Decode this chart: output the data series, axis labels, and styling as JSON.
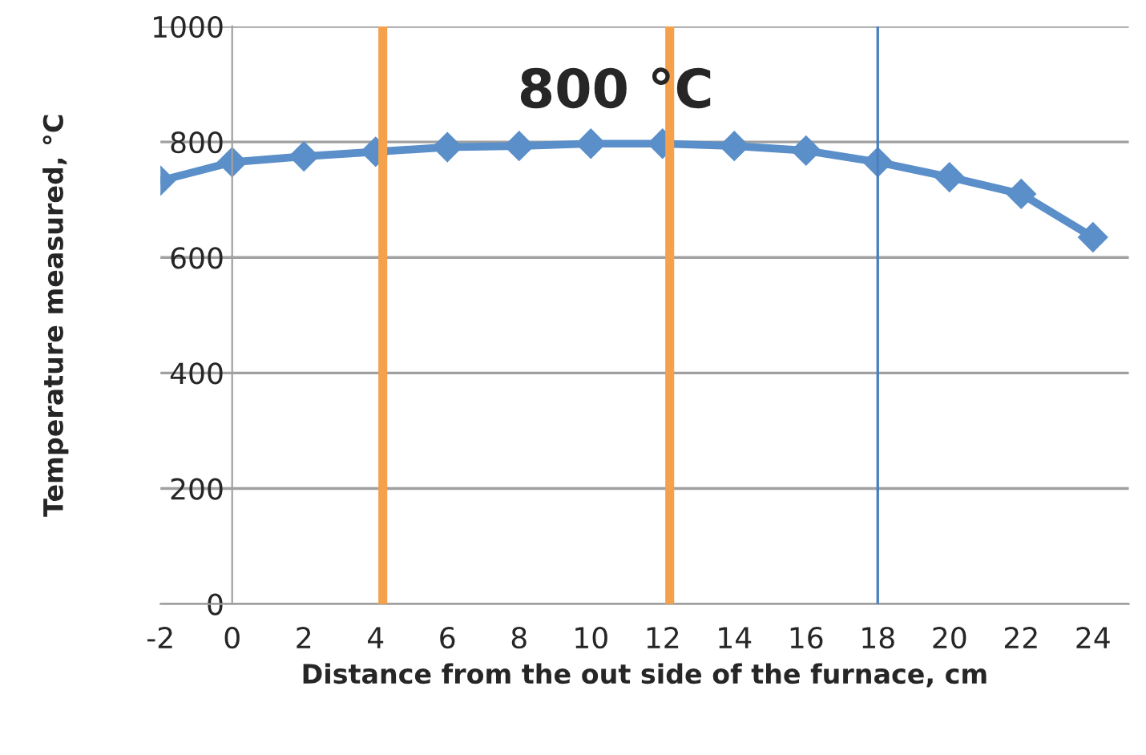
{
  "chart_data": {
    "type": "line",
    "xlabel": "Distance from the out side of the furnace, cm",
    "ylabel": "Temperature measured, °C",
    "annotations": [
      "800 °C"
    ],
    "x": [
      -2,
      0,
      2,
      4,
      6,
      8,
      10,
      12,
      14,
      16,
      18,
      20,
      22,
      24
    ],
    "series": [
      {
        "color": "#5b8fc9",
        "values": [
          733,
          765,
          775,
          783,
          791,
          793,
          797,
          797,
          793,
          785,
          765,
          739,
          710,
          635
        ]
      }
    ],
    "xlim": [
      -2,
      25
    ],
    "xticks": [
      -2,
      0,
      2,
      4,
      6,
      8,
      10,
      12,
      14,
      16,
      18,
      20,
      22,
      24
    ],
    "ylim": [
      0,
      1000
    ],
    "yticks": [
      0,
      200,
      400,
      600,
      800,
      1000
    ],
    "grid": "y",
    "marker": "diamond",
    "line_style": "solid",
    "ref_lines": [
      {
        "axis": "x",
        "value": 4.2,
        "color": "#f5a04a"
      },
      {
        "axis": "x",
        "value": 12.2,
        "color": "#f5a04a"
      },
      {
        "axis": "x",
        "value": 18,
        "color": "#4a7fc0"
      }
    ]
  }
}
